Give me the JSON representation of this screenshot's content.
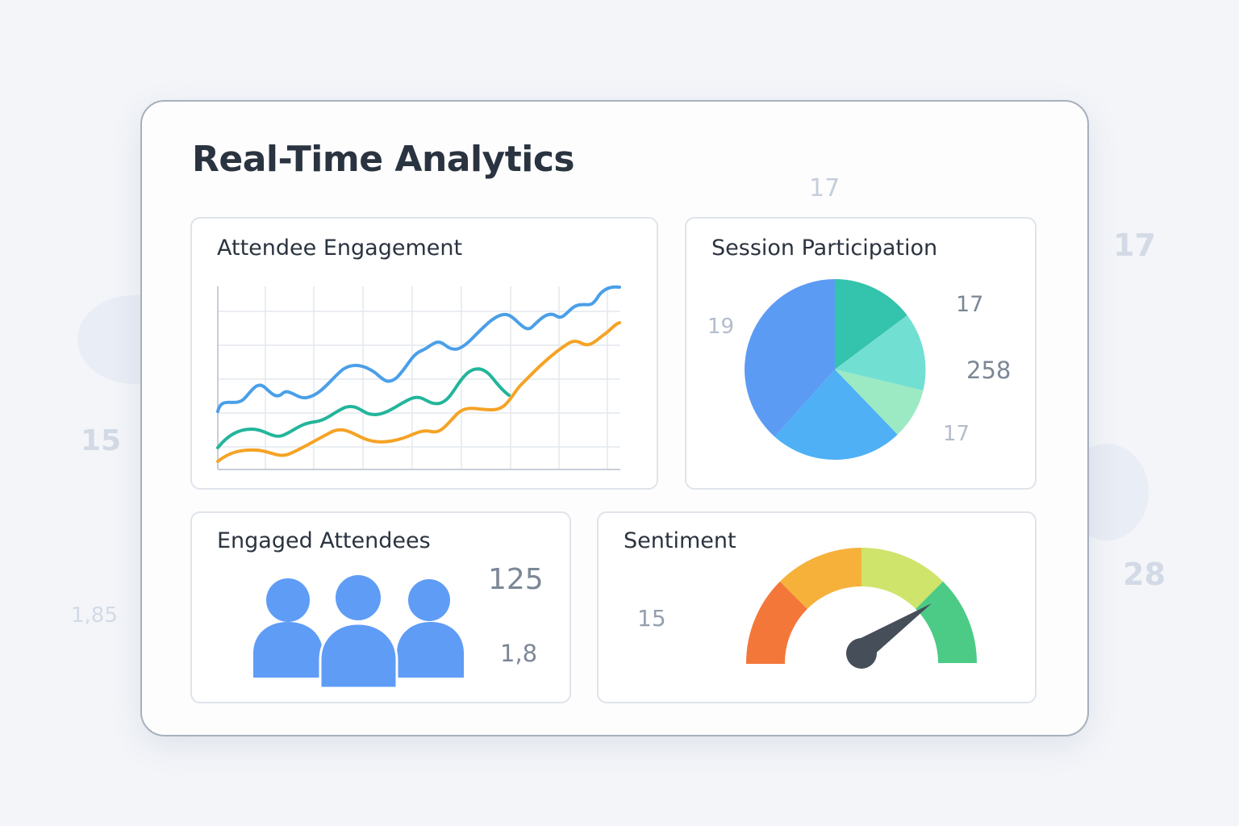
{
  "dashboard": {
    "title": "Real-Time Analytics",
    "header_number": "17",
    "background_numbers": [
      "17",
      "15",
      "1,85",
      "28"
    ]
  },
  "colors": {
    "blue_line": "#4a9fe8",
    "teal_line": "#23b59b",
    "orange_line": "#f5a325",
    "person_icon": "#5f9cf5",
    "gauge_needle": "#454e59"
  },
  "engagement_card": {
    "title": "Attendee Engagement"
  },
  "participation_card": {
    "title": "Session Participation",
    "labels": {
      "left": "19",
      "top_right": "17",
      "right": "258",
      "bottom_right": "17"
    },
    "slices": [
      {
        "color": "#34c3ad",
        "share": 0.13
      },
      {
        "color": "#72dfd3",
        "share": 0.14
      },
      {
        "color": "#9ceac3",
        "share": 0.12
      },
      {
        "color": "#4fb0f5",
        "share": 0.23
      },
      {
        "color": "#5c9bf3",
        "share": 0.38
      }
    ]
  },
  "engaged_card": {
    "title": "Engaged Attendees",
    "primary_value": "125",
    "secondary_value": "1,8",
    "icon": "people-group-icon"
  },
  "sentiment_card": {
    "title": "Sentiment",
    "side_value": "15",
    "segments": [
      "#f4773a",
      "#f6b13b",
      "#cfe46b",
      "#4ccb86"
    ],
    "needle_level": 0.8
  }
}
